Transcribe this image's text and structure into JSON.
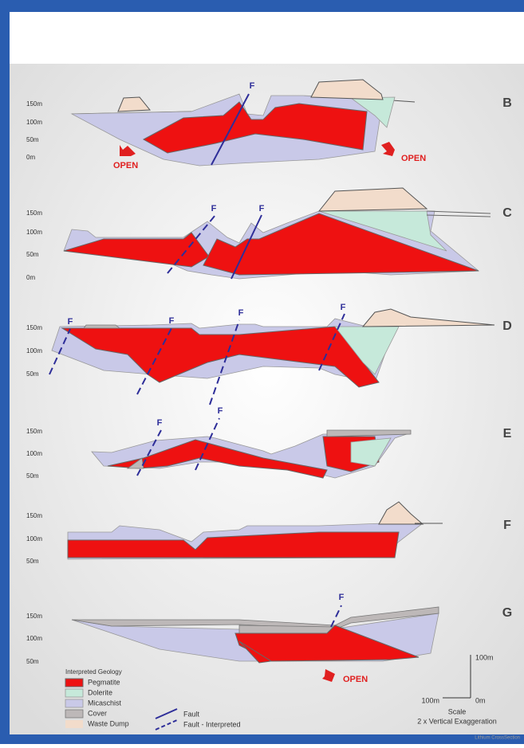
{
  "sections": [
    {
      "letter": "B",
      "depth_labels": [
        "150m",
        "100m",
        "50m",
        "0m"
      ],
      "fault_labels": [
        "F"
      ],
      "open_labels": [
        "OPEN",
        "OPEN"
      ]
    },
    {
      "letter": "C",
      "depth_labels": [
        "150m",
        "100m",
        "50m",
        "0m"
      ],
      "fault_labels": [
        "F",
        "F"
      ],
      "open_labels": []
    },
    {
      "letter": "D",
      "depth_labels": [
        "150m",
        "100m",
        "50m"
      ],
      "fault_labels": [
        "F",
        "F",
        "F",
        "F"
      ],
      "open_labels": []
    },
    {
      "letter": "E",
      "depth_labels": [
        "150m",
        "100m",
        "50m"
      ],
      "fault_labels": [
        "F",
        "F"
      ],
      "open_labels": []
    },
    {
      "letter": "F",
      "depth_labels": [
        "150m",
        "100m",
        "50m"
      ],
      "fault_labels": [],
      "open_labels": []
    },
    {
      "letter": "G",
      "depth_labels": [
        "150m",
        "100m",
        "50m"
      ],
      "fault_labels": [
        "F"
      ],
      "open_labels": [
        "OPEN"
      ]
    }
  ],
  "legend": {
    "title": "Interpreted Geology",
    "items": [
      "Pegmatite",
      "Dolerite",
      "Micaschist",
      "Cover",
      "Waste Dump"
    ],
    "faults": [
      "Fault",
      "Fault - Interpreted"
    ]
  },
  "scale": {
    "vertical": "100m",
    "vertical_zero": "0m",
    "horizontal": "100m",
    "horizontal_zero": "0m",
    "title": "Scale",
    "note": "2 x Vertical Exaggeration"
  },
  "footer": "Lithium CrossSection"
}
